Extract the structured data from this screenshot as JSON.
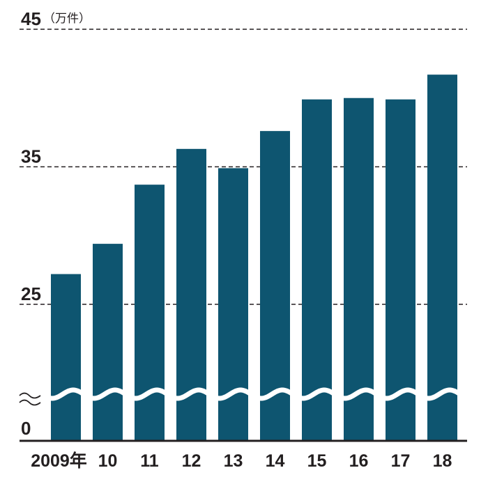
{
  "chart_data": {
    "type": "bar",
    "categories": [
      "2009年",
      "10",
      "11",
      "12",
      "13",
      "14",
      "15",
      "16",
      "17",
      "18"
    ],
    "values": [
      27.2,
      29.4,
      33.7,
      36.3,
      34.9,
      37.6,
      39.9,
      40.0,
      39.9,
      41.7
    ],
    "unit": "（万件）",
    "yticks": [
      "0",
      "25",
      "35",
      "45"
    ],
    "ylim": [
      0,
      45
    ],
    "axis_break": true,
    "grid": "dashed",
    "color": "#0e5570"
  }
}
